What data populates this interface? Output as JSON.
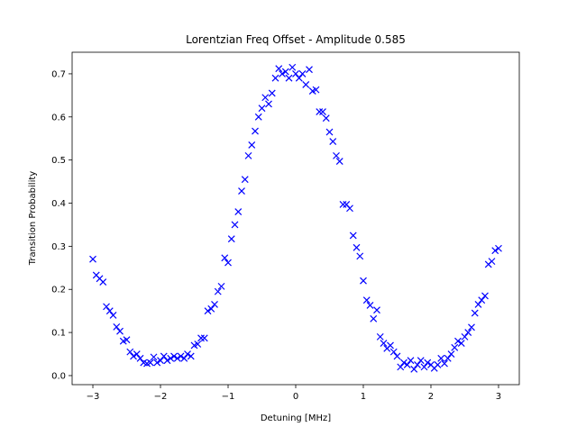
{
  "chart_data": {
    "type": "scatter",
    "title": "Lorentzian Freq Offset - Amplitude 0.585",
    "x_label": "Detuning [MHz]",
    "y_label": "Transition Probability",
    "marker": "x",
    "color": "#0000ff",
    "xlim": [
      -3.307,
      3.307
    ],
    "ylim": [
      -0.021,
      0.75
    ],
    "xticks": [
      {
        "value": -3,
        "label": "−3"
      },
      {
        "value": -2,
        "label": "−2"
      },
      {
        "value": -1,
        "label": "−1"
      },
      0,
      1,
      2,
      3
    ],
    "yticks": [
      {
        "value": 0,
        "label": "0.0"
      },
      0.1,
      0.2,
      0.3,
      0.4,
      0.5,
      0.6,
      0.7
    ],
    "x": [
      -3.0,
      -2.95,
      -2.9,
      -2.85,
      -2.8,
      -2.75,
      -2.7,
      -2.65,
      -2.6,
      -2.55,
      -2.5,
      -2.45,
      -2.4,
      -2.35,
      -2.3,
      -2.25,
      -2.2,
      -2.15,
      -2.1,
      -2.05,
      -2.0,
      -1.95,
      -1.9,
      -1.85,
      -1.8,
      -1.75,
      -1.7,
      -1.65,
      -1.6,
      -1.55,
      -1.5,
      -1.45,
      -1.4,
      -1.35,
      -1.3,
      -1.25,
      -1.2,
      -1.15,
      -1.1,
      -1.05,
      -1.0,
      -0.95,
      -0.9,
      -0.85,
      -0.8,
      -0.75,
      -0.7,
      -0.65,
      -0.6,
      -0.55,
      -0.5,
      -0.45,
      -0.4,
      -0.35,
      -0.3,
      -0.25,
      -0.2,
      -0.15,
      -0.1,
      -0.05,
      0.0,
      0.05,
      0.1,
      0.15,
      0.2,
      0.25,
      0.3,
      0.35,
      0.4,
      0.45,
      0.5,
      0.55,
      0.6,
      0.65,
      0.7,
      0.75,
      0.8,
      0.85,
      0.9,
      0.95,
      1.0,
      1.05,
      1.1,
      1.15,
      1.2,
      1.25,
      1.3,
      1.35,
      1.4,
      1.45,
      1.5,
      1.55,
      1.6,
      1.65,
      1.7,
      1.75,
      1.8,
      1.85,
      1.9,
      1.95,
      2.0,
      2.05,
      2.1,
      2.15,
      2.2,
      2.25,
      2.3,
      2.35,
      2.4,
      2.45,
      2.5,
      2.55,
      2.6,
      2.65,
      2.7,
      2.75,
      2.8,
      2.85,
      2.9,
      2.95,
      3.0
    ],
    "values": [
      0.27,
      0.233,
      0.225,
      0.217,
      0.16,
      0.15,
      0.14,
      0.113,
      0.103,
      0.08,
      0.083,
      0.055,
      0.045,
      0.05,
      0.04,
      0.03,
      0.028,
      0.03,
      0.043,
      0.03,
      0.035,
      0.045,
      0.035,
      0.04,
      0.045,
      0.04,
      0.045,
      0.04,
      0.05,
      0.045,
      0.07,
      0.073,
      0.087,
      0.087,
      0.15,
      0.155,
      0.165,
      0.195,
      0.207,
      0.273,
      0.262,
      0.317,
      0.35,
      0.38,
      0.428,
      0.455,
      0.51,
      0.535,
      0.567,
      0.6,
      0.62,
      0.645,
      0.63,
      0.655,
      0.69,
      0.712,
      0.7,
      0.705,
      0.69,
      0.715,
      0.7,
      0.69,
      0.7,
      0.675,
      0.71,
      0.66,
      0.663,
      0.612,
      0.612,
      0.597,
      0.565,
      0.543,
      0.51,
      0.497,
      0.397,
      0.397,
      0.388,
      0.325,
      0.297,
      0.277,
      0.22,
      0.175,
      0.163,
      0.132,
      0.152,
      0.09,
      0.075,
      0.063,
      0.07,
      0.055,
      0.045,
      0.02,
      0.03,
      0.025,
      0.035,
      0.015,
      0.025,
      0.035,
      0.02,
      0.03,
      0.025,
      0.017,
      0.025,
      0.04,
      0.028,
      0.04,
      0.05,
      0.065,
      0.08,
      0.075,
      0.09,
      0.1,
      0.112,
      0.145,
      0.165,
      0.175,
      0.185,
      0.258,
      0.265,
      0.29,
      0.295
    ]
  }
}
